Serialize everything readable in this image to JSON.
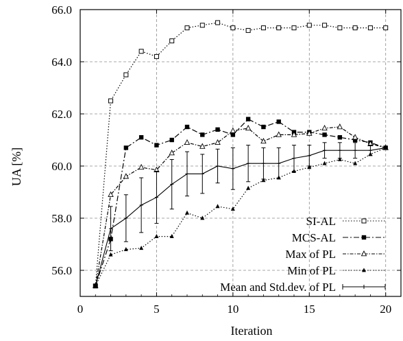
{
  "chart_data": {
    "type": "line",
    "title": "",
    "xlabel": "Iteration",
    "ylabel": "UA [%]",
    "xlim": [
      0,
      21
    ],
    "ylim": [
      55.0,
      66.0
    ],
    "xticks": [
      0,
      5,
      10,
      15,
      20
    ],
    "yticks": [
      56.0,
      58.0,
      60.0,
      62.0,
      64.0,
      66.0
    ],
    "xtick_labels": [
      "0",
      "5",
      "10",
      "15",
      "20"
    ],
    "ytick_labels": [
      "56.0",
      "58.0",
      "60.0",
      "62.0",
      "64.0",
      "66.0"
    ],
    "grid": true,
    "legend_position": "bottom-right",
    "series": [
      {
        "name": "SI-AL",
        "style": "dotted",
        "marker": "open-square",
        "color": "#000000",
        "x": [
          1,
          2,
          3,
          4,
          5,
          6,
          7,
          8,
          9,
          10,
          11,
          12,
          13,
          14,
          15,
          16,
          17,
          18,
          19,
          20
        ],
        "y": [
          55.4,
          62.5,
          63.5,
          64.4,
          64.2,
          64.8,
          65.3,
          65.4,
          65.5,
          65.3,
          65.2,
          65.3,
          65.3,
          65.3,
          65.4,
          65.4,
          65.3,
          65.3,
          65.3,
          65.3
        ]
      },
      {
        "name": "MCS-AL",
        "style": "dashdot",
        "marker": "filled-square",
        "color": "#000000",
        "x": [
          1,
          2,
          3,
          4,
          5,
          6,
          7,
          8,
          9,
          10,
          11,
          12,
          13,
          14,
          15,
          16,
          17,
          18,
          19,
          20
        ],
        "y": [
          55.4,
          57.2,
          60.7,
          61.1,
          60.8,
          61.0,
          61.5,
          61.2,
          61.4,
          61.2,
          61.8,
          61.5,
          61.7,
          61.3,
          61.3,
          61.2,
          61.1,
          61.0,
          60.9,
          60.7
        ]
      },
      {
        "name": "Max of PL",
        "style": "dashdot-fine",
        "marker": "open-triangle",
        "color": "#000000",
        "x": [
          1,
          2,
          3,
          4,
          5,
          6,
          7,
          8,
          9,
          10,
          11,
          12,
          13,
          14,
          15,
          16,
          17,
          18,
          19,
          20
        ],
        "y": [
          55.4,
          58.9,
          59.6,
          59.95,
          59.85,
          60.5,
          60.9,
          60.75,
          60.9,
          61.35,
          61.45,
          60.95,
          61.2,
          61.2,
          61.25,
          61.45,
          61.5,
          61.1,
          60.85,
          60.7
        ]
      },
      {
        "name": "Min of PL",
        "style": "dotted",
        "marker": "filled-triangle",
        "color": "#000000",
        "x": [
          1,
          2,
          3,
          4,
          5,
          6,
          7,
          8,
          9,
          10,
          11,
          12,
          13,
          14,
          15,
          16,
          17,
          18,
          19,
          20
        ],
        "y": [
          55.4,
          56.6,
          56.8,
          56.85,
          57.3,
          57.3,
          58.2,
          58.0,
          58.45,
          58.35,
          59.15,
          59.45,
          59.55,
          59.8,
          59.95,
          60.1,
          60.25,
          60.1,
          60.45,
          60.7
        ]
      },
      {
        "name": "Mean and Std.dev. of PL",
        "style": "solid",
        "marker": "errorbar",
        "color": "#000000",
        "x": [
          1,
          2,
          3,
          4,
          5,
          6,
          7,
          8,
          9,
          10,
          11,
          12,
          13,
          14,
          15,
          16,
          17,
          18,
          19,
          20
        ],
        "y": [
          55.4,
          57.6,
          58.0,
          58.5,
          58.8,
          59.3,
          59.7,
          59.7,
          60.0,
          59.9,
          60.1,
          60.1,
          60.1,
          60.3,
          60.4,
          60.6,
          60.6,
          60.6,
          60.6,
          60.7
        ],
        "err": [
          0,
          0.85,
          0.9,
          1.05,
          1.0,
          0.95,
          0.85,
          0.75,
          0.65,
          0.8,
          0.7,
          0.6,
          0.6,
          0.5,
          0.4,
          0.3,
          0.3,
          0.3,
          0.2,
          0.0
        ]
      }
    ]
  }
}
